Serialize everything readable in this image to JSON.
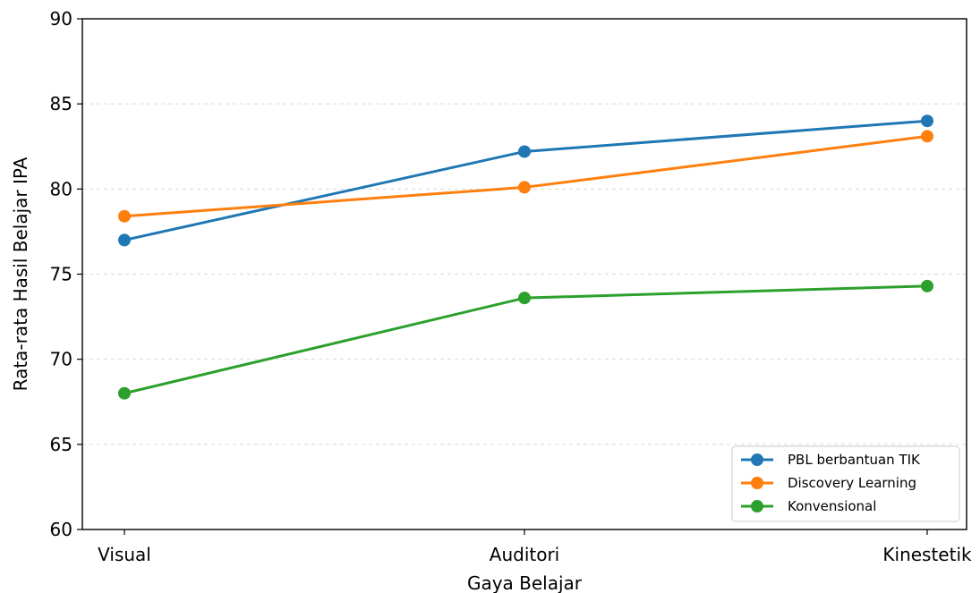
{
  "chart_data": {
    "type": "line",
    "categories": [
      "Visual",
      "Auditori",
      "Kinestetik"
    ],
    "series": [
      {
        "name": "PBL berbantuan TIK",
        "values": [
          77.0,
          82.2,
          84.0
        ],
        "color": "#1f77b4"
      },
      {
        "name": "Discovery Learning",
        "values": [
          78.4,
          80.1,
          83.1
        ],
        "color": "#ff7f0e"
      },
      {
        "name": "Konvensional",
        "values": [
          68.0,
          73.6,
          74.3
        ],
        "color": "#2ca02c"
      }
    ],
    "xlabel": "Gaya Belajar",
    "ylabel": "Rata-rata Hasil Belajar IPA",
    "ylim": [
      60,
      90
    ],
    "yticks": [
      60,
      65,
      70,
      75,
      80,
      85,
      90
    ],
    "grid": "horizontal dashed",
    "legend_position": "lower-right"
  }
}
